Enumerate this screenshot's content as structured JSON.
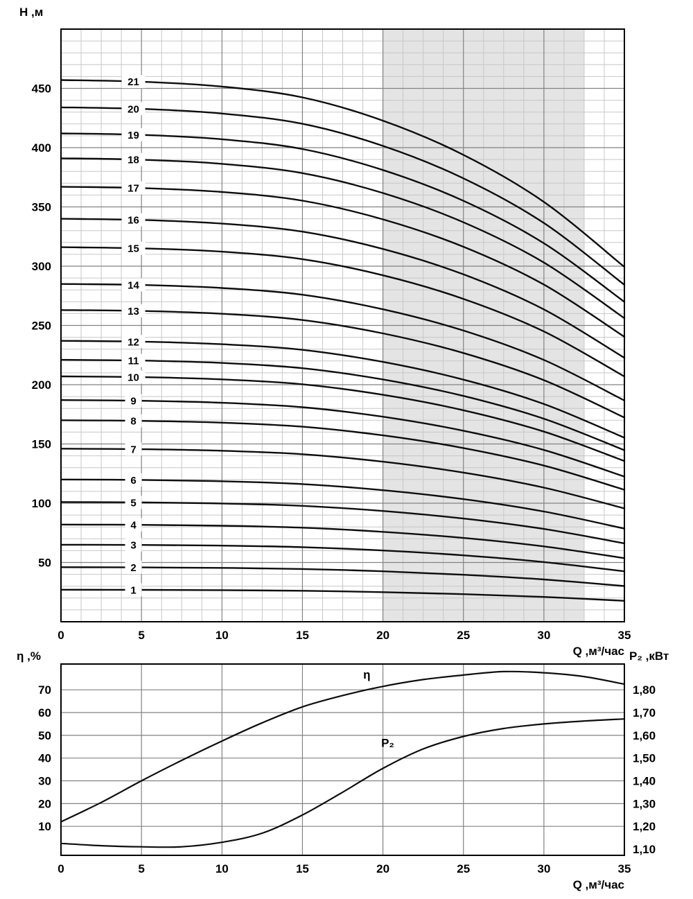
{
  "figure": {
    "background": "#ffffff",
    "curve_color": "#0d0d0d",
    "grid_major_color": "#828282",
    "grid_minor_color": "#c7c7c7",
    "border_color": "#000000"
  },
  "chart_data": [
    {
      "type": "line",
      "name": "head-flow-curves",
      "xlabel": "Q ,м³/час",
      "ylabel": "H ,м",
      "xlim": [
        0,
        35
      ],
      "ylim": [
        0,
        500
      ],
      "x_ticks": [
        0,
        5,
        10,
        15,
        20,
        25,
        30,
        35
      ],
      "y_ticks": [
        50,
        100,
        150,
        200,
        250,
        300,
        350,
        400,
        450
      ],
      "x_minor_step": 1.25,
      "y_minor_step": 10,
      "grid": true,
      "legend": "none",
      "shaded_region": {
        "q_start": 20,
        "q_end": 32.5,
        "color": "#e4e4e4"
      },
      "curve_shape": {
        "q": [
          0,
          5,
          10,
          15,
          20,
          25,
          30,
          35
        ],
        "fraction_of_shutoff_head": [
          1.0,
          0.997,
          0.988,
          0.968,
          0.925,
          0.862,
          0.775,
          0.655
        ]
      },
      "curve_label_q": 4.5,
      "curves": [
        {
          "label": "1",
          "shutoff_head_m": 27
        },
        {
          "label": "2",
          "shutoff_head_m": 46
        },
        {
          "label": "3",
          "shutoff_head_m": 65
        },
        {
          "label": "4",
          "shutoff_head_m": 82
        },
        {
          "label": "5",
          "shutoff_head_m": 101
        },
        {
          "label": "6",
          "shutoff_head_m": 120
        },
        {
          "label": "7",
          "shutoff_head_m": 146
        },
        {
          "label": "8",
          "shutoff_head_m": 170
        },
        {
          "label": "9",
          "shutoff_head_m": 187
        },
        {
          "label": "10",
          "shutoff_head_m": 207
        },
        {
          "label": "11",
          "shutoff_head_m": 221
        },
        {
          "label": "12",
          "shutoff_head_m": 237
        },
        {
          "label": "13",
          "shutoff_head_m": 263
        },
        {
          "label": "14",
          "shutoff_head_m": 285
        },
        {
          "label": "15",
          "shutoff_head_m": 316
        },
        {
          "label": "16",
          "shutoff_head_m": 340
        },
        {
          "label": "17",
          "shutoff_head_m": 367
        },
        {
          "label": "18",
          "shutoff_head_m": 391
        },
        {
          "label": "19",
          "shutoff_head_m": 412
        },
        {
          "label": "20",
          "shutoff_head_m": 434
        },
        {
          "label": "21",
          "shutoff_head_m": 457
        }
      ]
    },
    {
      "type": "line",
      "name": "efficiency-and-power",
      "xlabel": "Q ,м³/час",
      "ylabel_left": "η ,%",
      "ylabel_right": "P₂ ,кВт",
      "xlim": [
        0,
        35
      ],
      "x_ticks": [
        0,
        5,
        10,
        15,
        20,
        25,
        30,
        35
      ],
      "left_ticks": [
        10,
        20,
        30,
        40,
        50,
        60,
        70
      ],
      "right_ticks": [
        "1,10",
        "1,20",
        "1,30",
        "1,40",
        "1,50",
        "1,60",
        "1,70",
        "1,80"
      ],
      "grid": true,
      "series": [
        {
          "name": "η",
          "axis": "left",
          "x": [
            0,
            2.5,
            5,
            7.5,
            10,
            12.5,
            15,
            17.5,
            20,
            22.5,
            25,
            27.5,
            30,
            32.5,
            35
          ],
          "y": [
            12,
            20.5,
            30,
            39,
            47.5,
            55.5,
            62.5,
            67.5,
            71.5,
            74.5,
            76.5,
            78,
            77.5,
            75.8,
            72.5
          ],
          "label": {
            "q": 19.0,
            "v": 76.5
          }
        },
        {
          "name": "P₂",
          "axis": "right",
          "x": [
            0,
            2.5,
            5,
            7.5,
            10,
            12.5,
            15,
            17.5,
            20,
            22.5,
            25,
            27.5,
            30,
            32.5,
            35
          ],
          "y": [
            1.125,
            1.115,
            1.11,
            1.11,
            1.13,
            1.17,
            1.25,
            1.35,
            1.455,
            1.54,
            1.595,
            1.63,
            1.65,
            1.663,
            1.672
          ],
          "label": {
            "q": 20.3,
            "v": 1.565
          }
        }
      ]
    }
  ]
}
